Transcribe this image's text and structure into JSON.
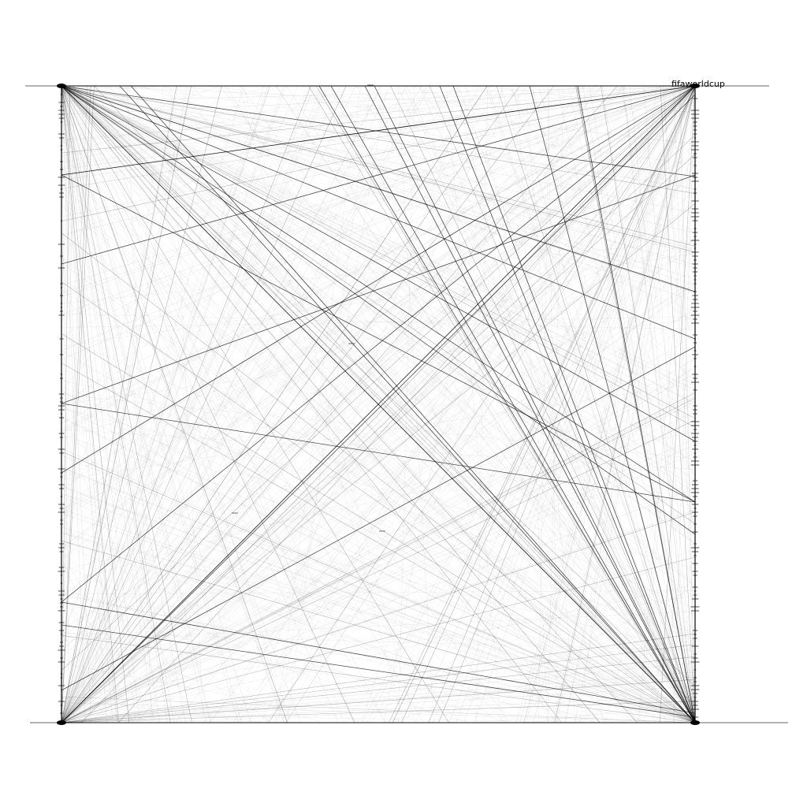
{
  "graph": {
    "title_label": "fifaworldcup",
    "node_color": "#000000",
    "edge_color": "#000000",
    "background": "#ffffff",
    "hub_nodes": [
      "top-left",
      "top-right",
      "bottom-left",
      "bottom-right"
    ]
  }
}
